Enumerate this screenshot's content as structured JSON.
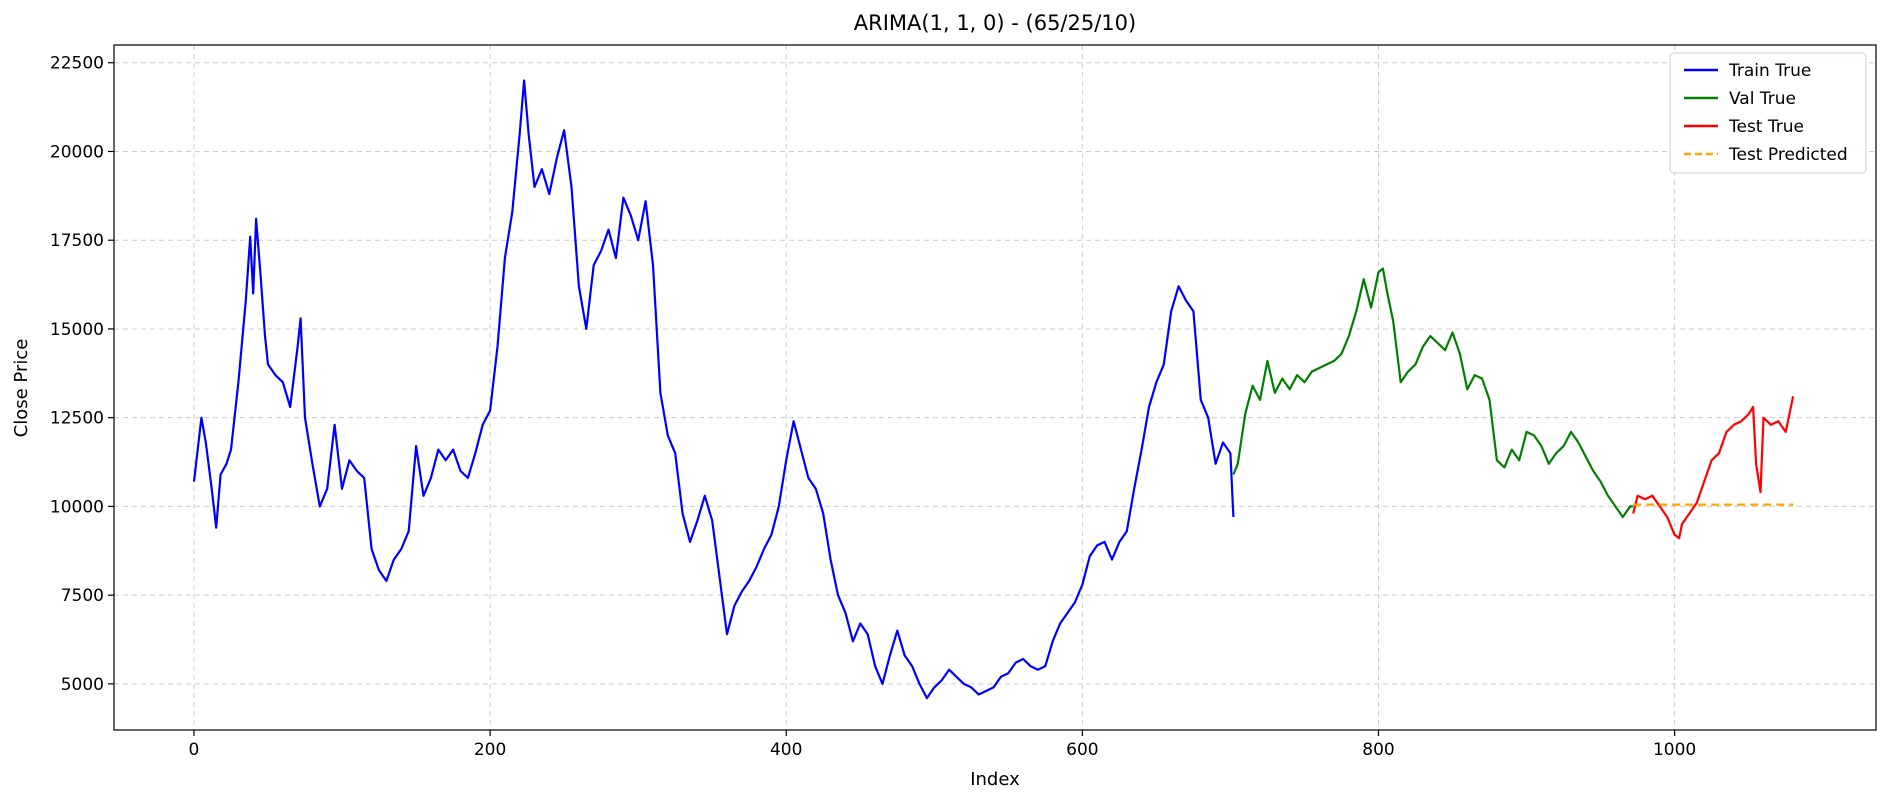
{
  "chart_data": {
    "type": "line",
    "title": "ARIMA(1, 1, 0) - (65/25/10)",
    "xlabel": "Index",
    "ylabel": "Close Price",
    "xlim": [
      -54,
      1136
    ],
    "ylim": [
      3700,
      23000
    ],
    "xticks": [
      0,
      200,
      400,
      600,
      800,
      1000
    ],
    "yticks": [
      5000,
      7500,
      10000,
      12500,
      15000,
      17500,
      20000,
      22500
    ],
    "grid": true,
    "legend_position": "top-right",
    "series": [
      {
        "name": "Train True",
        "color": "#0000ff",
        "dash": "solid",
        "x": [
          0,
          5,
          8,
          12,
          15,
          18,
          22,
          25,
          30,
          35,
          38,
          40,
          42,
          45,
          48,
          50,
          55,
          60,
          65,
          70,
          72,
          75,
          80,
          85,
          90,
          95,
          100,
          105,
          110,
          115,
          120,
          125,
          130,
          135,
          140,
          145,
          150,
          155,
          160,
          165,
          170,
          175,
          180,
          185,
          190,
          195,
          200,
          205,
          210,
          215,
          220,
          223,
          226,
          230,
          235,
          240,
          245,
          250,
          255,
          260,
          265,
          270,
          275,
          280,
          285,
          290,
          295,
          300,
          305,
          310,
          315,
          320,
          325,
          330,
          335,
          340,
          345,
          350,
          355,
          360,
          365,
          370,
          375,
          380,
          385,
          390,
          395,
          400,
          405,
          410,
          415,
          420,
          425,
          430,
          435,
          440,
          445,
          450,
          455,
          460,
          465,
          470,
          475,
          480,
          485,
          490,
          495,
          500,
          505,
          510,
          515,
          520,
          525,
          530,
          535,
          540,
          545,
          550,
          555,
          560,
          565,
          570,
          575,
          580,
          585,
          590,
          595,
          600,
          605,
          610,
          615,
          620,
          625,
          630,
          635,
          640,
          645,
          650,
          655,
          660,
          665,
          670,
          675,
          680,
          685,
          690,
          695,
          700,
          702
        ],
        "y": [
          10700,
          12500,
          11800,
          10500,
          9400,
          10900,
          11200,
          11600,
          13500,
          15800,
          17600,
          16000,
          18100,
          16500,
          14800,
          14000,
          13700,
          13500,
          12800,
          14500,
          15300,
          12500,
          11200,
          10000,
          10500,
          12300,
          10500,
          11300,
          11000,
          10800,
          8800,
          8200,
          7900,
          8500,
          8800,
          9300,
          11700,
          10300,
          10800,
          11600,
          11300,
          11600,
          11000,
          10800,
          11500,
          12300,
          12700,
          14500,
          17000,
          18300,
          20500,
          22000,
          20500,
          19000,
          19500,
          18800,
          19800,
          20600,
          19000,
          16200,
          15000,
          16800,
          17200,
          17800,
          17000,
          18700,
          18200,
          17500,
          18600,
          16800,
          13200,
          12000,
          11500,
          9800,
          9000,
          9600,
          10300,
          9600,
          8000,
          6400,
          7200,
          7600,
          7900,
          8300,
          8800,
          9200,
          10000,
          11300,
          12400,
          11600,
          10800,
          10500,
          9800,
          8500,
          7500,
          7000,
          6200,
          6700,
          6400,
          5500,
          5000,
          5800,
          6500,
          5800,
          5500,
          5000,
          4600,
          4900,
          5100,
          5400,
          5200,
          5000,
          4900,
          4700,
          4800,
          4900,
          5200,
          5300,
          5600,
          5700,
          5500,
          5400,
          5500,
          6200,
          6700,
          7000,
          7300,
          7800,
          8600,
          8900,
          9000,
          8500,
          9000,
          9300,
          10500,
          11600,
          12800,
          13500,
          14000,
          15500,
          16200,
          15800,
          15500,
          13000,
          12500,
          11200,
          11800,
          11500,
          9700
        ],
        "start_index": 0
      },
      {
        "name": "Val True",
        "color": "#008000",
        "dash": "solid",
        "x": [
          702,
          705,
          710,
          715,
          720,
          725,
          730,
          735,
          740,
          745,
          750,
          755,
          760,
          765,
          770,
          775,
          780,
          785,
          790,
          795,
          800,
          803,
          806,
          810,
          815,
          820,
          825,
          830,
          835,
          840,
          845,
          850,
          855,
          860,
          865,
          870,
          875,
          880,
          885,
          890,
          895,
          900,
          905,
          910,
          915,
          920,
          925,
          930,
          935,
          940,
          945,
          950,
          955,
          960,
          965,
          970,
          972
        ],
        "y": [
          10900,
          11200,
          12600,
          13400,
          13000,
          14100,
          13200,
          13600,
          13300,
          13700,
          13500,
          13800,
          13900,
          14000,
          14100,
          14300,
          14800,
          15500,
          16400,
          15600,
          16600,
          16700,
          16000,
          15200,
          13500,
          13800,
          14000,
          14500,
          14800,
          14600,
          14400,
          14900,
          14300,
          13300,
          13700,
          13600,
          13000,
          11300,
          11100,
          11600,
          11300,
          12100,
          12000,
          11700,
          11200,
          11500,
          11700,
          12100,
          11800,
          11400,
          11000,
          10700,
          10300,
          10000,
          9700,
          10000,
          10000
        ],
        "start_index": 702
      },
      {
        "name": "Test True",
        "color": "#ff0000",
        "dash": "solid",
        "x": [
          972,
          975,
          980,
          985,
          990,
          995,
          1000,
          1003,
          1005,
          1010,
          1015,
          1020,
          1025,
          1030,
          1035,
          1040,
          1045,
          1050,
          1053,
          1055,
          1058,
          1060,
          1065,
          1070,
          1075,
          1080
        ],
        "y": [
          9800,
          10300,
          10200,
          10300,
          10000,
          9700,
          9200,
          9100,
          9500,
          9800,
          10100,
          10700,
          11300,
          11500,
          12100,
          12300,
          12400,
          12600,
          12800,
          11200,
          10400,
          12500,
          12300,
          12400,
          12100,
          13100
        ],
        "start_index": 972
      },
      {
        "name": "Test Predicted",
        "color": "#ffa500",
        "dash": "dashed",
        "x": [
          972,
          1080
        ],
        "y": [
          10050,
          10050
        ],
        "start_index": 972
      }
    ]
  }
}
